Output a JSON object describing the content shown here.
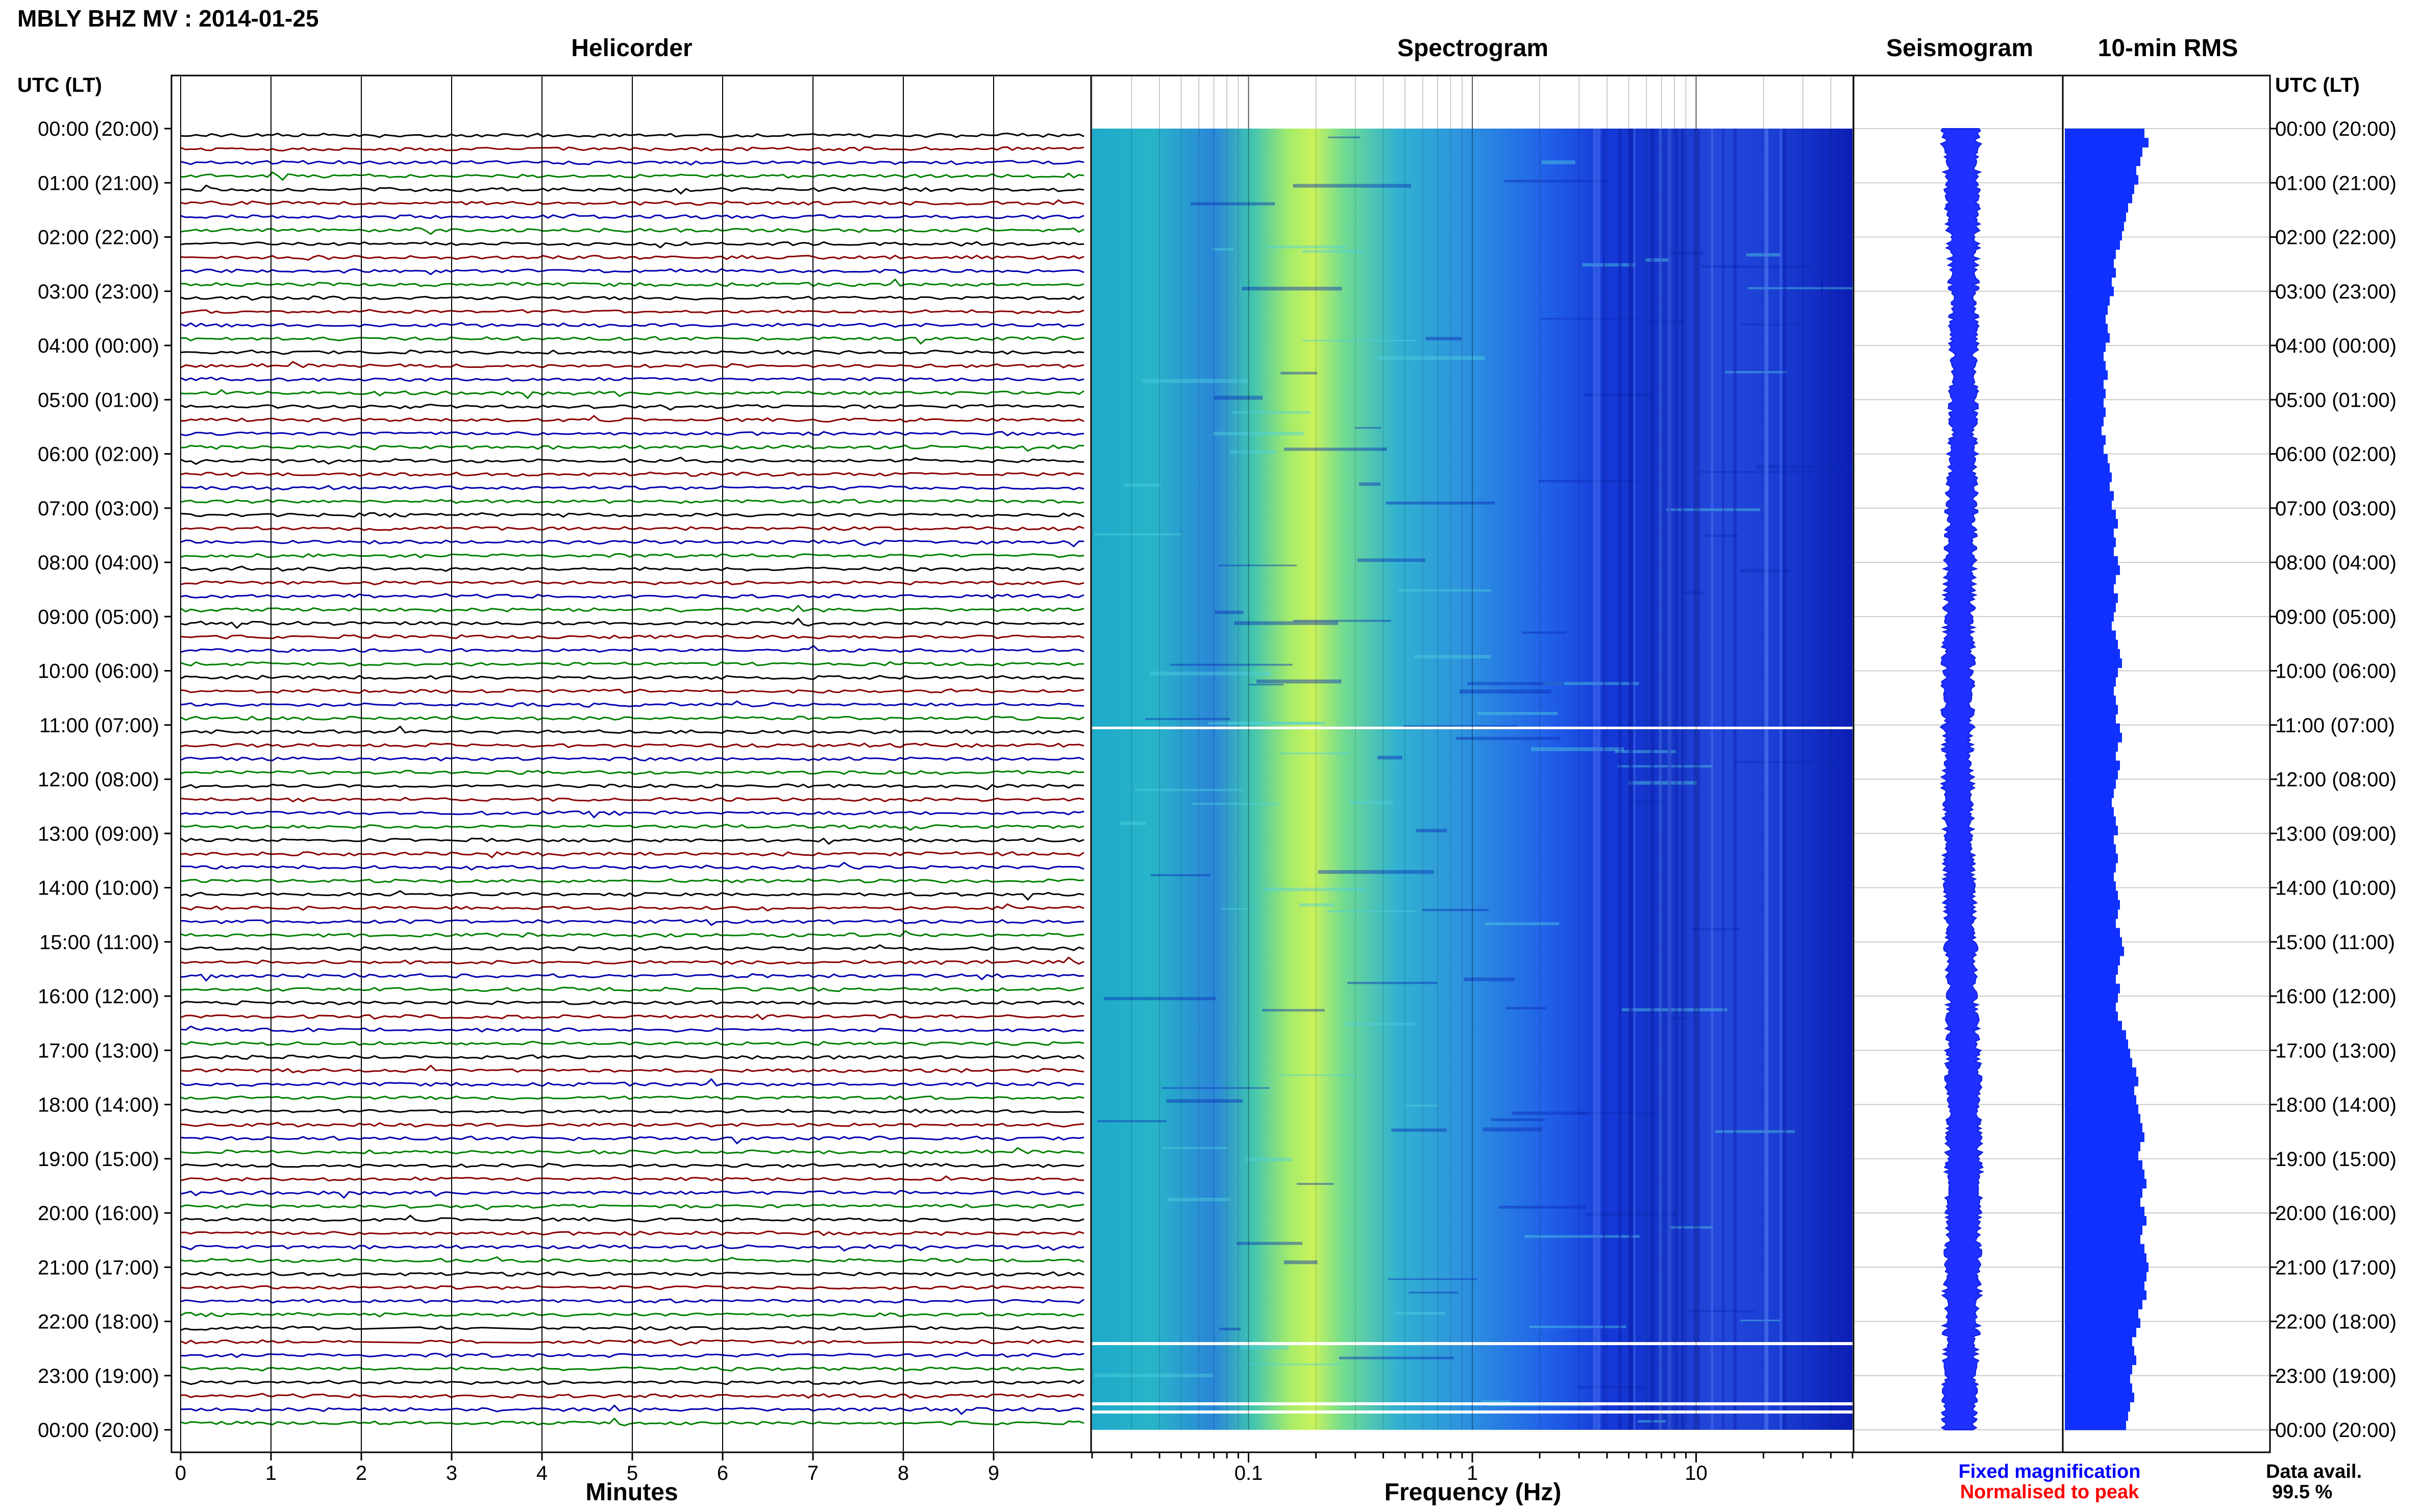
{
  "window": {
    "title": "MBLY BHZ MV : 2014-01-25"
  },
  "panels": {
    "helicorder": "Helicorder",
    "spectrogram": "Spectrogram",
    "seismogram": "Seismogram",
    "rms": "10-min RMS"
  },
  "axes": {
    "left_head": "UTC (LT)",
    "right_head": "UTC (LT)",
    "minutes_label": "Minutes",
    "frequency_label": "Frequency (Hz)"
  },
  "legend": {
    "fixed": "Fixed magnification",
    "normalised": "Normalised to peak",
    "fixed_color": "#0000ff",
    "normalised_color": "#ff0000"
  },
  "availability": {
    "label": "Data avail.",
    "value": "99.5 %"
  },
  "chart_data": {
    "type": "heatmap",
    "title": "MBLY BHZ MV : 2014-01-25",
    "time_ticks": [
      "00:00 (20:00)",
      "01:00 (21:00)",
      "02:00 (22:00)",
      "03:00 (23:00)",
      "04:00 (00:00)",
      "05:00 (01:00)",
      "06:00 (02:00)",
      "07:00 (03:00)",
      "08:00 (04:00)",
      "09:00 (05:00)",
      "10:00 (06:00)",
      "11:00 (07:00)",
      "12:00 (08:00)",
      "13:00 (09:00)",
      "14:00 (10:00)",
      "15:00 (11:00)",
      "16:00 (12:00)",
      "17:00 (13:00)",
      "18:00 (14:00)",
      "19:00 (15:00)",
      "20:00 (16:00)",
      "21:00 (17:00)",
      "22:00 (18:00)",
      "23:00 (19:00)",
      "00:00 (20:00)"
    ],
    "minute_ticks": [
      "0",
      "1",
      "2",
      "3",
      "4",
      "5",
      "6",
      "7",
      "8",
      "9"
    ],
    "minutes_range": [
      0,
      10
    ],
    "frequency_ticks": [
      "0.1",
      "1",
      "10"
    ],
    "frequency_range": [
      0.02,
      50
    ],
    "frequency_scale": "log",
    "trace_colors": [
      "#000000",
      "#8b0000",
      "#0000b0",
      "#008000"
    ],
    "rms_color": "#1030ff",
    "rms_values": [
      0.78,
      0.82,
      0.76,
      0.74,
      0.7,
      0.72,
      0.68,
      0.66,
      0.62,
      0.6,
      0.58,
      0.56,
      0.54,
      0.5,
      0.48,
      0.5,
      0.46,
      0.48,
      0.44,
      0.42,
      0.4,
      0.42,
      0.44,
      0.4,
      0.38,
      0.4,
      0.42,
      0.38,
      0.4,
      0.38,
      0.4,
      0.38,
      0.36,
      0.4,
      0.38,
      0.42,
      0.44,
      0.46,
      0.44,
      0.48,
      0.46,
      0.5,
      0.52,
      0.48,
      0.5,
      0.48,
      0.52,
      0.54,
      0.5,
      0.48,
      0.52,
      0.5,
      0.48,
      0.46,
      0.5,
      0.52,
      0.54,
      0.56,
      0.52,
      0.5,
      0.48,
      0.5,
      0.52,
      0.5,
      0.54,
      0.56,
      0.52,
      0.5,
      0.54,
      0.52,
      0.5,
      0.48,
      0.46,
      0.48,
      0.5,
      0.52,
      0.48,
      0.5,
      0.52,
      0.5,
      0.48,
      0.5,
      0.52,
      0.54,
      0.52,
      0.5,
      0.54,
      0.56,
      0.58,
      0.54,
      0.52,
      0.5,
      0.54,
      0.52,
      0.5,
      0.52,
      0.56,
      0.6,
      0.62,
      0.64,
      0.66,
      0.7,
      0.72,
      0.68,
      0.7,
      0.72,
      0.74,
      0.76,
      0.78,
      0.74,
      0.72,
      0.76,
      0.78,
      0.8,
      0.76,
      0.74,
      0.78,
      0.8,
      0.76,
      0.74,
      0.78,
      0.8,
      0.82,
      0.8,
      0.78,
      0.8,
      0.76,
      0.72,
      0.74,
      0.7,
      0.66,
      0.68,
      0.7,
      0.66,
      0.64,
      0.66,
      0.68,
      0.64,
      0.62,
      0.6
    ]
  }
}
